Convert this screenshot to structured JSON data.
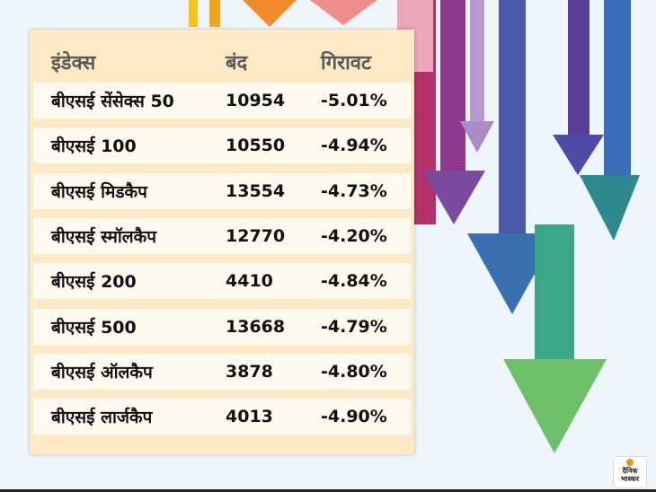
{
  "table": {
    "headers": [
      "इंडेक्स",
      "बंद",
      "गिरावट"
    ],
    "rows": [
      [
        "बीएसई सेंसेक्स 50",
        "10954",
        "-5.01%"
      ],
      [
        "बीएसई 100",
        "10550",
        "-4.94%"
      ],
      [
        "बीएसई मिडकैप",
        "13554",
        "-4.73%"
      ],
      [
        "बीएसई स्मॉलकैप",
        "12770",
        "-4.20%"
      ],
      [
        "बीएसई 200",
        "4410",
        "-4.84%"
      ],
      [
        "बीएसई 500",
        "13668",
        "-4.79%"
      ],
      [
        "बीएसई ऑलकैप",
        "3878",
        "-4.80%"
      ],
      [
        "बीएसई लार्जकैप",
        "4013",
        "-4.90%"
      ]
    ]
  },
  "logo": {
    "text": "दैनिक भास्कर",
    "accent": "#f39019"
  },
  "colors": {
    "panel": "#fde9c4",
    "row": "#fffaf0",
    "background": "#eef6fb"
  }
}
